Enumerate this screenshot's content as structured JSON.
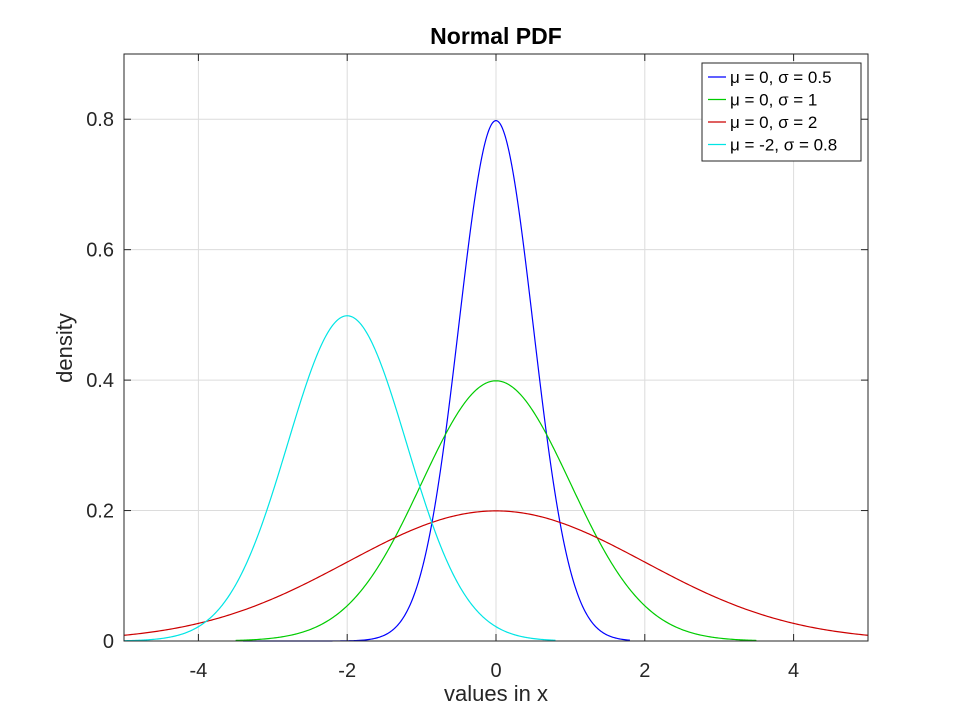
{
  "chart_data": {
    "type": "line",
    "title": "Normal PDF",
    "xlabel": "values in x",
    "ylabel": "density",
    "xlim": [
      -5,
      5
    ],
    "ylim": [
      0,
      0.9
    ],
    "xticks": [
      -4,
      -2,
      0,
      2,
      4
    ],
    "xtick_labels": [
      "-4",
      "-2",
      "0",
      "2",
      "4"
    ],
    "yticks": [
      0,
      0.2,
      0.4,
      0.6,
      0.8
    ],
    "ytick_labels": [
      "0",
      "0.2",
      "0.4",
      "0.6",
      "0.8"
    ],
    "grid": true,
    "legend_position": "top-right",
    "series": [
      {
        "name": "μ = 0, σ = 0.5",
        "mu": 0,
        "sigma": 0.5,
        "color": "#0000ff",
        "x_range": [
          -3.4,
          1.8
        ]
      },
      {
        "name": "μ = 0, σ = 1",
        "mu": 0,
        "sigma": 1,
        "color": "#00cc00",
        "x_range": [
          -3.5,
          3.5
        ]
      },
      {
        "name": "μ = 0, σ = 2",
        "mu": 0,
        "sigma": 2,
        "color": "#cc0000",
        "x_range": [
          -5,
          5
        ]
      },
      {
        "name": "μ = -2, σ = 0.8",
        "mu": -2,
        "sigma": 0.8,
        "color": "#00e5e5",
        "x_range": [
          -5,
          0.8
        ]
      }
    ]
  }
}
